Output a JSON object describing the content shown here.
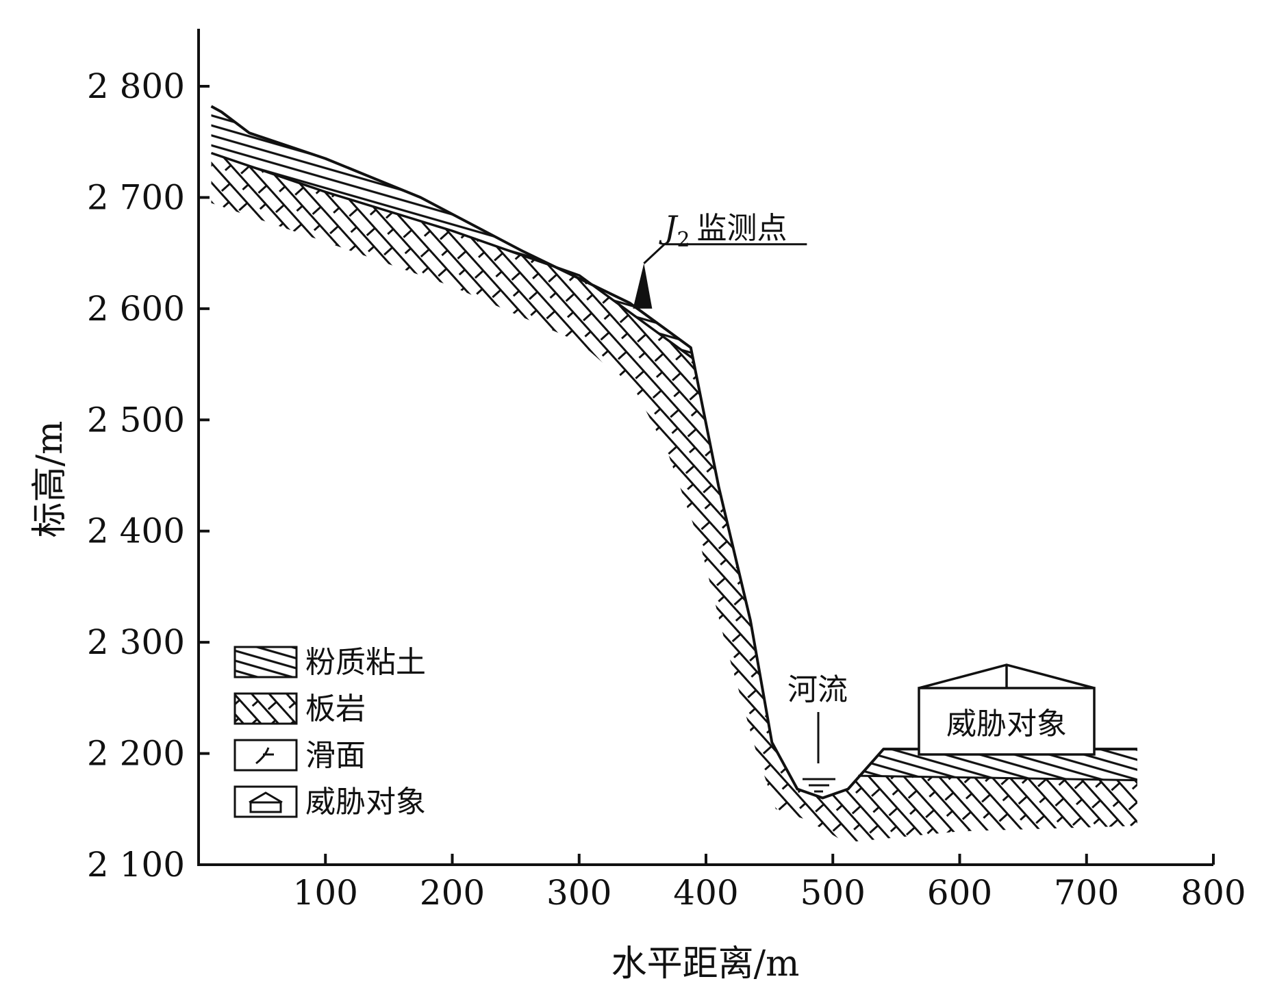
{
  "diagram": {
    "type": "geological cross-section",
    "x_axis": {
      "title": "水平距离/m",
      "range": [
        0,
        800
      ],
      "ticks": [
        "100",
        "200",
        "300",
        "400",
        "500",
        "600",
        "700",
        "800"
      ]
    },
    "y_axis": {
      "title": "标高/m",
      "range": [
        2100,
        2850
      ],
      "ticks": [
        "2 100",
        "2 200",
        "2 300",
        "2 400",
        "2 500",
        "2 600",
        "2 700",
        "2 800"
      ]
    },
    "annotations": {
      "monitor_letter": "J",
      "monitor_sub": "2",
      "monitor_text": "监测点",
      "river": "河流",
      "building": "威胁对象"
    },
    "legend": [
      {
        "id": "silty-clay",
        "label": "粉质粘土"
      },
      {
        "id": "slate",
        "label": "板岩"
      },
      {
        "id": "slip-surface",
        "label": "滑面"
      },
      {
        "id": "threatened-object",
        "label": "威胁对象"
      }
    ]
  },
  "profile_data": {
    "ground_surface": [
      [
        10,
        2782
      ],
      [
        18,
        2777
      ],
      [
        40,
        2758
      ],
      [
        100,
        2735
      ],
      [
        175,
        2700
      ],
      [
        255,
        2652
      ],
      [
        340,
        2605
      ],
      [
        370,
        2580
      ],
      [
        388,
        2565
      ],
      [
        410,
        2440
      ],
      [
        435,
        2320
      ],
      [
        452,
        2210
      ],
      [
        472,
        2168
      ],
      [
        492,
        2160
      ],
      [
        512,
        2168
      ],
      [
        540,
        2204
      ],
      [
        740,
        2204
      ]
    ],
    "clay_base": [
      [
        10,
        2740
      ],
      [
        100,
        2705
      ],
      [
        200,
        2670
      ],
      [
        300,
        2630
      ],
      [
        390,
        2555
      ]
    ],
    "terrace_clay_base": [
      [
        520,
        2180
      ],
      [
        740,
        2176
      ]
    ],
    "rock_lower_boundary": [
      [
        10,
        2695
      ],
      [
        100,
        2660
      ],
      [
        200,
        2620
      ],
      [
        300,
        2570
      ],
      [
        345,
        2525
      ],
      [
        370,
        2470
      ],
      [
        395,
        2390
      ],
      [
        415,
        2300
      ],
      [
        440,
        2200
      ],
      [
        455,
        2150
      ],
      [
        480,
        2140
      ],
      [
        510,
        2120
      ],
      [
        600,
        2130
      ],
      [
        740,
        2135
      ]
    ],
    "monitor_x": 350,
    "river_x": 490,
    "building_x": [
      570,
      710
    ]
  },
  "colors": {
    "ink": "#111111",
    "background": "#ffffff"
  }
}
